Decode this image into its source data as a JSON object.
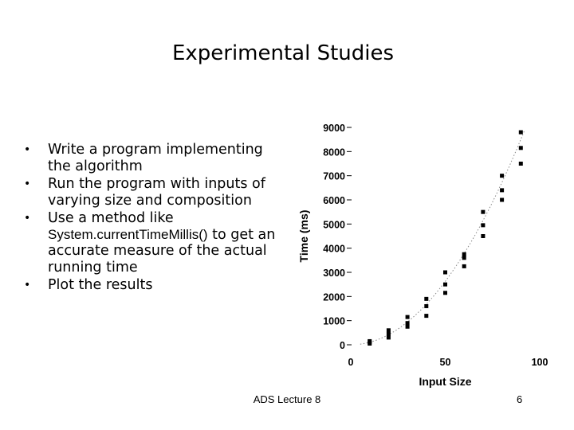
{
  "slide": {
    "title": "Experimental Studies",
    "bullets": [
      {
        "text": "Write a program implementing the algorithm"
      },
      {
        "text": "Run the program with inputs of varying size and composition"
      },
      {
        "prefix": "Use a method like ",
        "code": "System.currentTimeMillis()",
        "suffix": " to get an accurate measure of the actual running time"
      },
      {
        "text": "Plot the results"
      }
    ],
    "footer": "ADS Lecture 8",
    "page_number": "6"
  },
  "chart_data": {
    "type": "scatter",
    "title": "",
    "xlabel": "Input Size",
    "ylabel": "Time (ms)",
    "xlim": [
      0,
      100
    ],
    "ylim": [
      0,
      9000
    ],
    "x_ticks": [
      "0",
      "50",
      "100"
    ],
    "y_ticks": [
      "0",
      "1000",
      "2000",
      "3000",
      "4000",
      "5000",
      "6000",
      "7000",
      "8000",
      "9000"
    ],
    "trend_line": "dotted",
    "points": [
      {
        "x": 10,
        "y": 50
      },
      {
        "x": 10,
        "y": 100
      },
      {
        "x": 10,
        "y": 150
      },
      {
        "x": 20,
        "y": 300
      },
      {
        "x": 20,
        "y": 450
      },
      {
        "x": 20,
        "y": 600
      },
      {
        "x": 30,
        "y": 750
      },
      {
        "x": 30,
        "y": 900
      },
      {
        "x": 30,
        "y": 1150
      },
      {
        "x": 40,
        "y": 1200
      },
      {
        "x": 40,
        "y": 1600
      },
      {
        "x": 40,
        "y": 1900
      },
      {
        "x": 50,
        "y": 2150
      },
      {
        "x": 50,
        "y": 2500
      },
      {
        "x": 50,
        "y": 3000
      },
      {
        "x": 60,
        "y": 3250
      },
      {
        "x": 60,
        "y": 3600
      },
      {
        "x": 60,
        "y": 3750
      },
      {
        "x": 70,
        "y": 4500
      },
      {
        "x": 70,
        "y": 4950
      },
      {
        "x": 70,
        "y": 5500
      },
      {
        "x": 80,
        "y": 6000
      },
      {
        "x": 80,
        "y": 6400
      },
      {
        "x": 80,
        "y": 7000
      },
      {
        "x": 90,
        "y": 7500
      },
      {
        "x": 90,
        "y": 8150
      },
      {
        "x": 90,
        "y": 8800
      }
    ],
    "colors": {
      "marker": "#000000",
      "trend": "#888888"
    }
  }
}
